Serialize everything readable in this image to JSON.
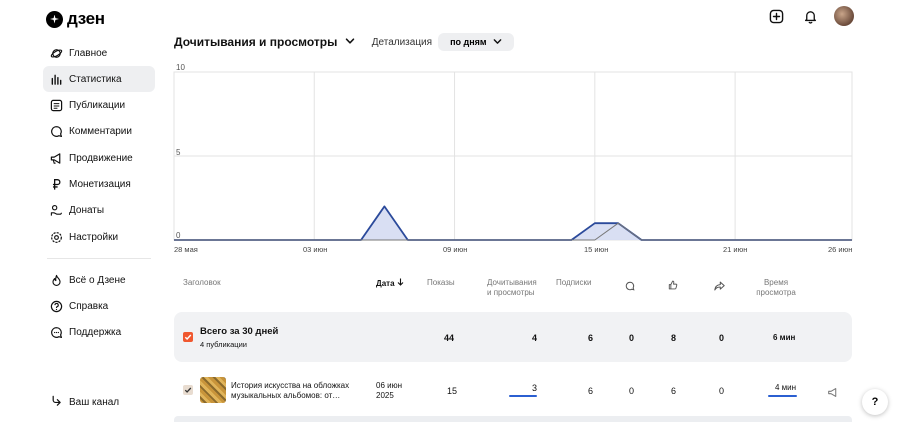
{
  "brand": {
    "name": "дзен"
  },
  "sidebar": {
    "items": [
      {
        "label": "Главное",
        "icon": "planet-icon"
      },
      {
        "label": "Статистика",
        "icon": "bar-chart-icon",
        "active": true
      },
      {
        "label": "Публикации",
        "icon": "document-icon"
      },
      {
        "label": "Комментарии",
        "icon": "comment-icon"
      },
      {
        "label": "Продвижение",
        "icon": "megaphone-icon"
      },
      {
        "label": "Монетизация",
        "icon": "ruble-icon"
      },
      {
        "label": "Донаты",
        "icon": "donate-icon"
      },
      {
        "label": "Настройки",
        "icon": "gear-icon"
      }
    ],
    "secondary": [
      {
        "label": "Всё о Дзене",
        "icon": "flame-icon"
      },
      {
        "label": "Справка",
        "icon": "question-icon"
      },
      {
        "label": "Поддержка",
        "icon": "chat-icon"
      }
    ],
    "channel_label": "Ваш канал"
  },
  "header": {
    "metric_label": "Дочитывания и просмотры",
    "detail_label": "Детализация",
    "period_value": "по дням"
  },
  "chart_data": {
    "type": "area",
    "y_ticks": [
      "10",
      "5",
      "0"
    ],
    "ylim": [
      0,
      10
    ],
    "x_ticks": [
      "28 мая",
      "03 июн",
      "09 июн",
      "15 июн",
      "21 июн",
      "26 июн"
    ],
    "x": [
      "28 мая",
      "29 мая",
      "30 мая",
      "31 мая",
      "01 июн",
      "02 июн",
      "03 июн",
      "04 июн",
      "05 июн",
      "06 июн",
      "07 июн",
      "08 июн",
      "09 июн",
      "10 июн",
      "11 июн",
      "12 июн",
      "13 июн",
      "14 июн",
      "15 июн",
      "16 июн",
      "17 июн",
      "18 июн",
      "19 июн",
      "20 июн",
      "21 июн",
      "22 июн",
      "23 июн",
      "24 июн",
      "25 июн",
      "26 июн"
    ],
    "series": [
      {
        "values": [
          0,
          0,
          0,
          0,
          0,
          0,
          0,
          0,
          0,
          2,
          0,
          0,
          0,
          0,
          0,
          0,
          0,
          0,
          1,
          1,
          0,
          0,
          0,
          0,
          0,
          0,
          0,
          0,
          0,
          0
        ],
        "color": "#2b4a9b",
        "fill": "#d5dcf2"
      },
      {
        "values": [
          0,
          0,
          0,
          0,
          0,
          0,
          0,
          0,
          0,
          0,
          0,
          0,
          0,
          0,
          0,
          0,
          0,
          0,
          0,
          1,
          0,
          0,
          0,
          0,
          0,
          0,
          0,
          0,
          0,
          0
        ],
        "color": "#777777"
      }
    ],
    "grid": true
  },
  "table": {
    "columns": {
      "title": "Заголовок",
      "date": "Дата",
      "views": "Показы",
      "reads_1": "Дочитывания",
      "reads_2": "и просмотры",
      "subs": "Подписки",
      "time_1": "Время",
      "time_2": "просмотра"
    },
    "total": {
      "title": "Всего за 30 дней",
      "subtitle": "4 публикации",
      "views": "44",
      "reads": "4",
      "subs": "6",
      "comments": "0",
      "likes": "8",
      "shares": "0",
      "time": "6 мин"
    },
    "rows": [
      {
        "title_1": "История искусства на обложках",
        "title_2": "музыкальных альбомов: от…",
        "date_1": "06 июн",
        "date_2": "2025",
        "views": "15",
        "reads": "3",
        "subs": "6",
        "comments": "0",
        "likes": "6",
        "shares": "0",
        "time": "4 мин"
      }
    ]
  },
  "help_label": "?"
}
